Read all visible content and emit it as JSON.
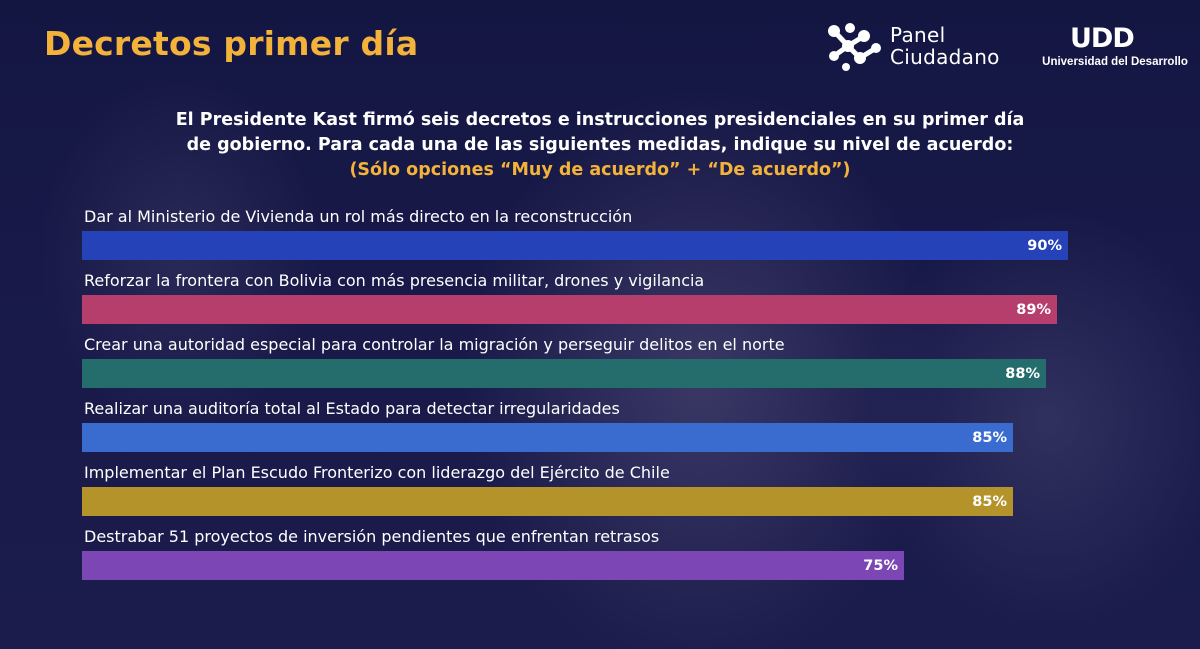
{
  "header": {
    "title": "Decretos primer día",
    "logo_panel_line1": "Panel",
    "logo_panel_line2": "Ciudadano",
    "logo_udd_mark": "UDD",
    "logo_udd_name": "Universidad del Desarrollo"
  },
  "question": {
    "line1": "El Presidente Kast firmó seis decretos e instrucciones presidenciales en su primer día",
    "line2": "de gobierno. Para cada una de las siguientes medidas, indique su nivel de acuerdo:",
    "note": "(Sólo opciones “Muy de acuerdo” + “De acuerdo”)"
  },
  "colors": {
    "title": "#f3b23a",
    "note": "#f3b23a"
  },
  "chart_data": {
    "type": "bar",
    "orientation": "horizontal",
    "categories": [
      "Dar al Ministerio de Vivienda un rol más directo en la reconstrucción",
      "Reforzar la frontera con Bolivia con más presencia militar, drones y vigilancia",
      "Crear una autoridad especial para controlar la migración y perseguir delitos en el norte",
      "Realizar una auditoría total al Estado para detectar irregularidades",
      "Implementar el Plan Escudo Fronterizo con liderazgo del Ejército de Chile",
      "Destrabar 51 proyectos de inversión pendientes que enfrentan retrasos"
    ],
    "values": [
      90,
      89,
      88,
      85,
      85,
      75
    ],
    "value_labels": [
      "90%",
      "89%",
      "88%",
      "85%",
      "85%",
      "75%"
    ],
    "colors": [
      "#2542b8",
      "#b53e6c",
      "#256d6c",
      "#3a6cd0",
      "#b5932b",
      "#7c47b4"
    ],
    "unit": "%",
    "xlim": [
      0,
      100
    ]
  }
}
